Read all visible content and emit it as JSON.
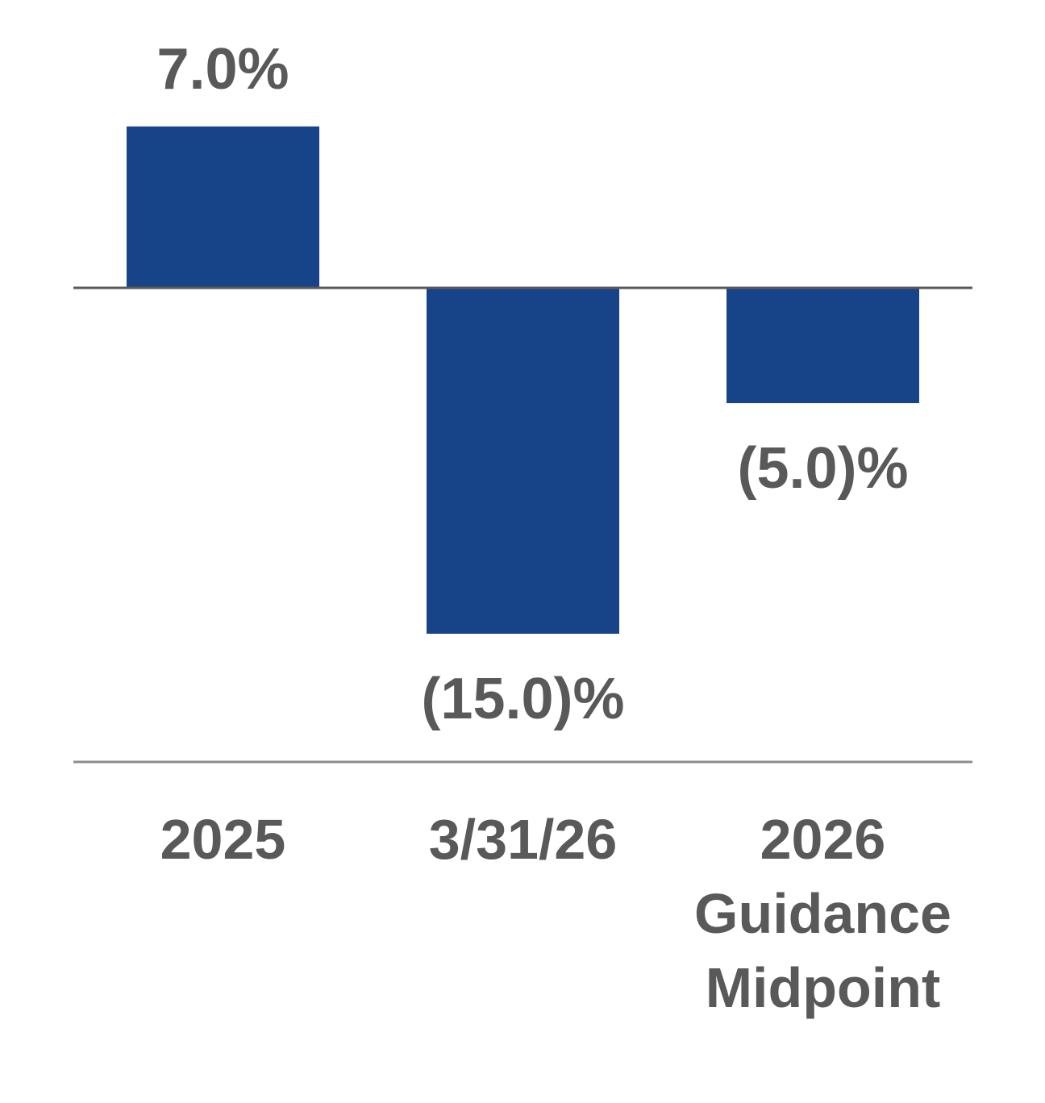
{
  "chart_data": {
    "type": "bar",
    "categories": [
      [
        "2025"
      ],
      [
        "3/31/26"
      ],
      [
        "2026",
        "Guidance",
        "Midpoint"
      ]
    ],
    "values": [
      7.0,
      -15.0,
      -5.0
    ],
    "data_labels": [
      "7.0%",
      "(15.0)%",
      "(5.0)%"
    ],
    "title": "",
    "xlabel": "",
    "ylabel": "",
    "ylim": [
      -15.0,
      7.0
    ],
    "grid": false,
    "legend": "none",
    "colors": {
      "bar": "#174489",
      "zero_line": "#595959",
      "axis_line": "#8c8c8c",
      "text": "#595959"
    }
  }
}
